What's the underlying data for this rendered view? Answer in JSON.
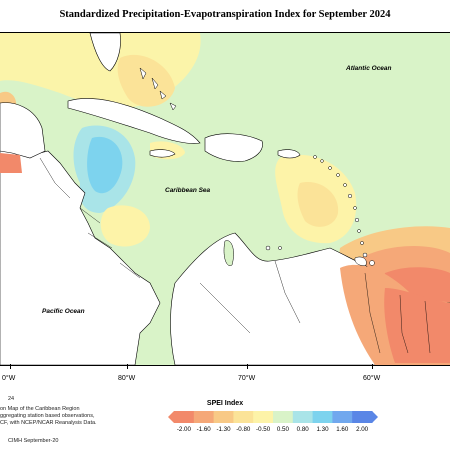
{
  "title": "Standardized Precipitation-Evapotranspiration Index for September 2024",
  "labels": {
    "atlantic": "Atlantic Ocean",
    "caribbean": "Caribbean Sea",
    "pacific": "Pacific Ocean"
  },
  "longitude_ticks": [
    "0°W",
    "80°W",
    "70°W",
    "60°W"
  ],
  "footer": {
    "left_number": "24",
    "line1": "on Map of the Caribbean Region",
    "line2": "ggregating station based observations,",
    "line3": "CF, with NCEP/NCAR Reanalysis Data.",
    "credit": "CIMH September-20"
  },
  "legend": {
    "title": "SPEI Index",
    "values": [
      "-2.00",
      "-1.60",
      "-1.30",
      "-0.80",
      "-0.50",
      "0.50",
      "0.80",
      "1.30",
      "1.60",
      "2.00"
    ],
    "colors": [
      "#f2896a",
      "#f5a878",
      "#f8c986",
      "#fbe398",
      "#fdf3a8",
      "#d9f3c8",
      "#a9e4e8",
      "#7dd3ee",
      "#71a8ee",
      "#5a86e6"
    ]
  },
  "colors": {
    "near_normal": "#d9f3c8",
    "land": "#ffffff"
  }
}
